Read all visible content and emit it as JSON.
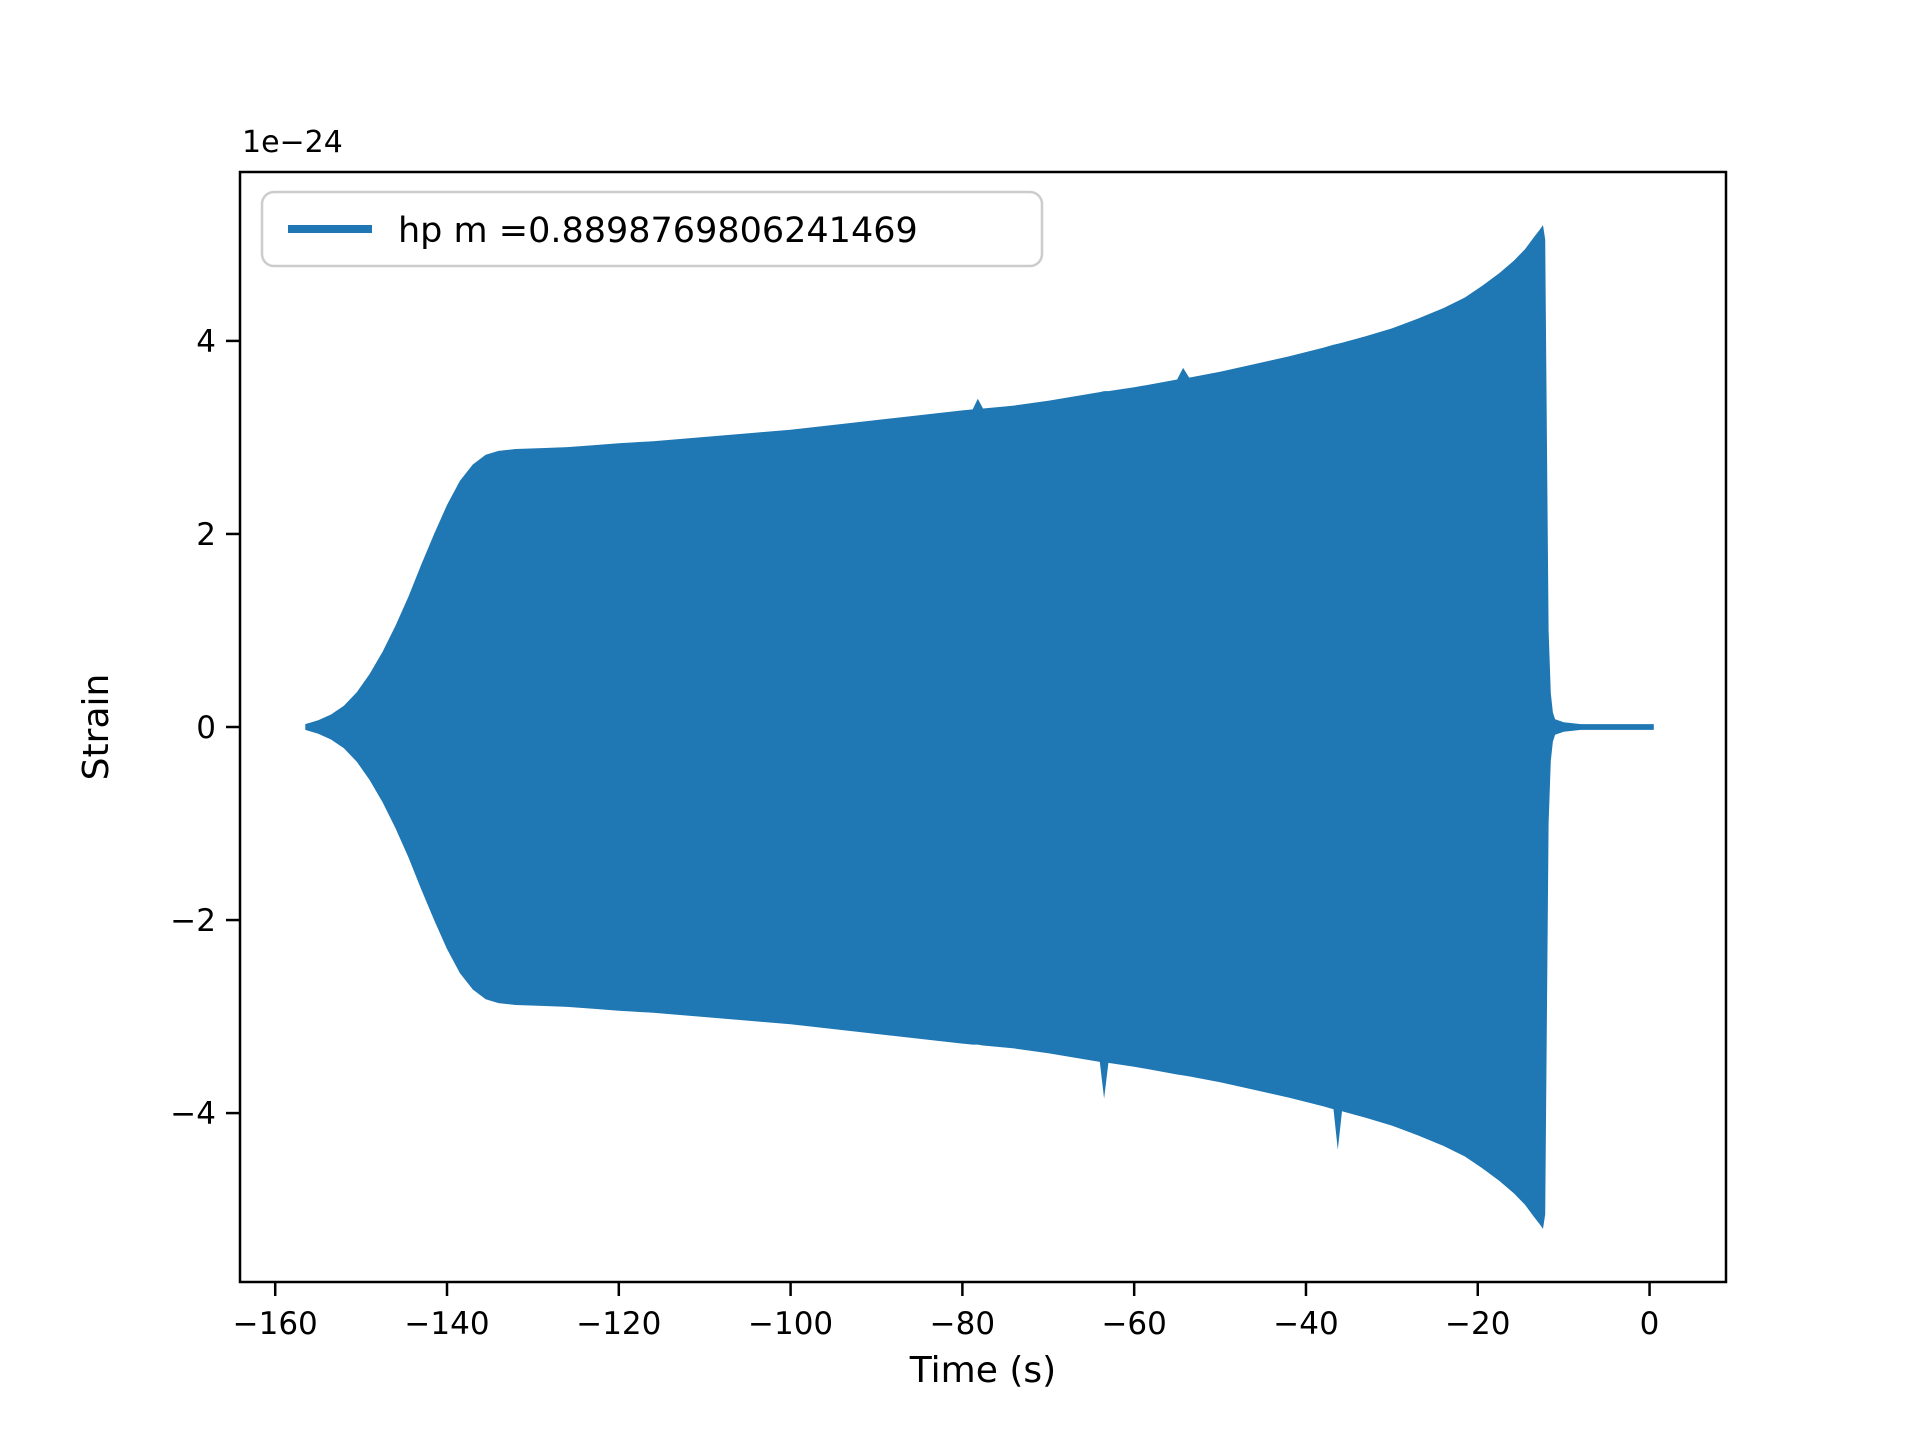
{
  "chart_data": {
    "type": "line",
    "title": "",
    "xlabel": "Time (s)",
    "ylabel": "Strain",
    "y_offset_label": "1e−24",
    "y_offset_factor": "1e-24",
    "series_color": "#1f77b4",
    "background_color": "#ffffff",
    "spine_color": "#000000",
    "legend": [
      {
        "label": "hp m =0.8898769806241469",
        "color": "#1f77b4"
      }
    ],
    "legend_position": "upper left",
    "grid": false,
    "xlim": [
      -164.1,
      8.9
    ],
    "ylim": [
      -5.75,
      5.75
    ],
    "xticks": [
      -160,
      -140,
      -120,
      -100,
      -80,
      -60,
      -40,
      -20,
      0
    ],
    "yticks": [
      -4,
      -2,
      0,
      2,
      4
    ],
    "envelope_units": "strain x 1e-24; dense oscillating chirp shown as filled amplitude envelope",
    "envelope": {
      "t": [
        -156.5,
        -155,
        -153.5,
        -152,
        -150.5,
        -149,
        -147.5,
        -146,
        -144.5,
        -143,
        -141.5,
        -140,
        -138.5,
        -137,
        -135.5,
        -134,
        -132,
        -129,
        -126,
        -123,
        -120,
        -116,
        -112,
        -108,
        -104,
        -100,
        -96,
        -92,
        -88,
        -84,
        -80,
        -78.8,
        -78.2,
        -77.6,
        -74,
        -70,
        -66,
        -64,
        -63.5,
        -63,
        -60,
        -58,
        -55,
        -54.3,
        -53.6,
        -50,
        -46,
        -42,
        -38,
        -36.8,
        -36.3,
        -35.8,
        -33,
        -30,
        -27,
        -24,
        -21.5,
        -19.5,
        -17.5,
        -15.8,
        -14.5,
        -13.5,
        -12.8,
        -12.4,
        -12.15,
        -11.95,
        -11.75,
        -11.5,
        -11.25,
        -11,
        -10,
        -8,
        -5,
        -2,
        0.5
      ],
      "upper": [
        0.03,
        0.07,
        0.13,
        0.22,
        0.36,
        0.55,
        0.78,
        1.05,
        1.35,
        1.68,
        2.0,
        2.3,
        2.55,
        2.72,
        2.82,
        2.86,
        2.88,
        2.89,
        2.9,
        2.92,
        2.94,
        2.96,
        2.99,
        3.02,
        3.05,
        3.08,
        3.12,
        3.16,
        3.2,
        3.24,
        3.28,
        3.29,
        3.4,
        3.3,
        3.33,
        3.38,
        3.44,
        3.47,
        3.48,
        3.48,
        3.52,
        3.55,
        3.6,
        3.72,
        3.62,
        3.68,
        3.76,
        3.84,
        3.93,
        3.96,
        3.97,
        3.98,
        4.05,
        4.13,
        4.23,
        4.34,
        4.45,
        4.57,
        4.7,
        4.83,
        4.95,
        5.07,
        5.15,
        5.2,
        5.05,
        3.0,
        1.0,
        0.35,
        0.15,
        0.08,
        0.05,
        0.03,
        0.03,
        0.03,
        0.03
      ],
      "lower": [
        -0.03,
        -0.07,
        -0.13,
        -0.22,
        -0.36,
        -0.55,
        -0.78,
        -1.05,
        -1.35,
        -1.68,
        -2.0,
        -2.3,
        -2.55,
        -2.72,
        -2.82,
        -2.86,
        -2.88,
        -2.89,
        -2.9,
        -2.92,
        -2.94,
        -2.96,
        -2.99,
        -3.02,
        -3.05,
        -3.08,
        -3.12,
        -3.16,
        -3.2,
        -3.24,
        -3.28,
        -3.29,
        -3.29,
        -3.3,
        -3.33,
        -3.38,
        -3.44,
        -3.47,
        -3.85,
        -3.48,
        -3.52,
        -3.55,
        -3.6,
        -3.61,
        -3.62,
        -3.68,
        -3.76,
        -3.84,
        -3.93,
        -3.96,
        -4.38,
        -3.98,
        -4.05,
        -4.13,
        -4.23,
        -4.34,
        -4.45,
        -4.57,
        -4.7,
        -4.83,
        -4.95,
        -5.07,
        -5.15,
        -5.2,
        -5.05,
        -3.0,
        -1.0,
        -0.35,
        -0.15,
        -0.08,
        -0.05,
        -0.03,
        -0.03,
        -0.03,
        -0.03
      ]
    }
  }
}
